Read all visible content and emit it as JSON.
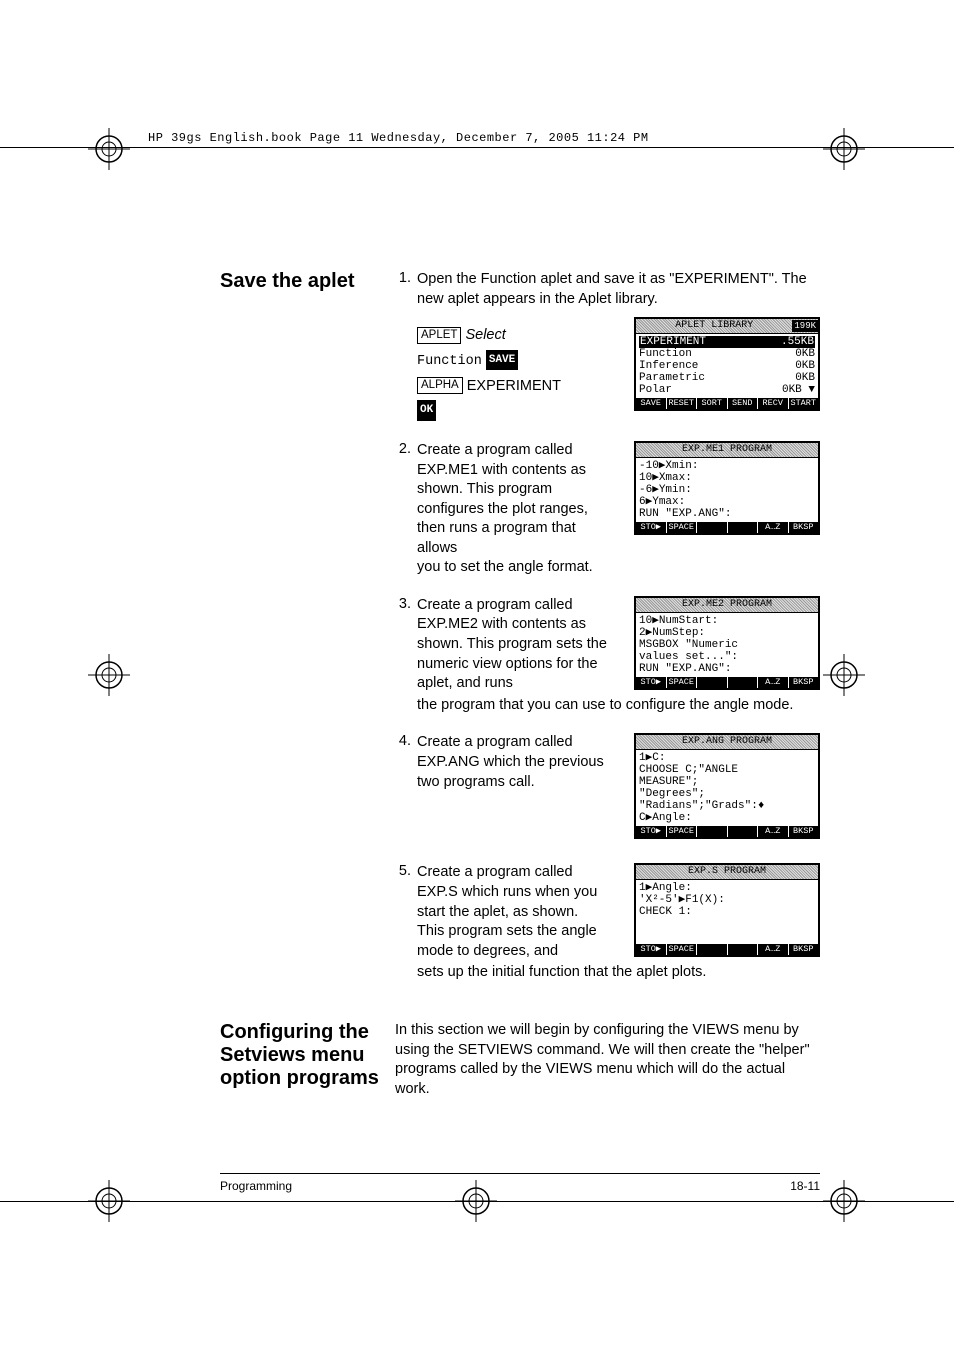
{
  "header": {
    "text": "HP 39gs English.book  Page 11  Wednesday, December 7, 2005  11:24 PM"
  },
  "section1": {
    "heading": "Save the aplet",
    "step1": {
      "text": "Open the Function aplet and save it as \"EXPERIMENT\". The new aplet appears in the Aplet library.",
      "btn_aplet": "APLET",
      "select": "Select",
      "function": "Function",
      "save": "SAVE",
      "btn_alpha": "ALPHA",
      "experiment": "EXPERIMENT",
      "ok": "OK",
      "lcd": {
        "title": "APLET LIBRARY",
        "mem": "199K",
        "rows": [
          {
            "l": "EXPERIMENT",
            "r": ".55KB",
            "hl": true
          },
          {
            "l": "Function",
            "r": "0KB"
          },
          {
            "l": "Inference",
            "r": "0KB"
          },
          {
            "l": "Parametric",
            "r": "0KB"
          },
          {
            "l": "Polar",
            "r": "0KB ▼"
          }
        ],
        "soft": [
          "SAVE",
          "RESET",
          "SORT",
          "SEND",
          "RECV",
          "START"
        ]
      }
    },
    "step2": {
      "text1": "Create a program called EXP.ME1 with contents as shown. This program configures the plot ranges, then runs a program that allows",
      "text2": "you to set the angle format.",
      "lcd": {
        "title": "EXP.ME1 PROGRAM",
        "lines": [
          "-10▶Xmin:",
          "10▶Xmax:",
          "-6▶Ymin:",
          "6▶Ymax:",
          "RUN \"EXP.ANG\":"
        ],
        "soft": [
          "STO▶",
          "SPACE",
          "",
          "",
          "A…Z",
          "BKSP"
        ]
      }
    },
    "step3": {
      "text1": "Create a program called EXP.ME2 with contents as shown. This program sets the numeric view options for the aplet, and runs",
      "text2": "the program that you can use to configure the angle mode.",
      "lcd": {
        "title": "EXP.ME2 PROGRAM",
        "lines": [
          "10▶NumStart:",
          "2▶NumStep:",
          "MSGBOX \"Numeric",
          "values set...\":",
          "RUN \"EXP.ANG\":"
        ],
        "soft": [
          "STO▶",
          "SPACE",
          "",
          "",
          "A…Z",
          "BKSP"
        ]
      }
    },
    "step4": {
      "text": "Create a program called EXP.ANG which the previous two programs call.",
      "lcd": {
        "title": "EXP.ANG PROGRAM",
        "lines": [
          "1▶C:",
          "CHOOSE C;\"ANGLE",
          "MEASURE\";",
          "\"Degrees\";",
          "\"Radians\";\"Grads\":♦",
          "C▶Angle:"
        ],
        "soft": [
          "STO▶",
          "SPACE",
          "",
          "",
          "A…Z",
          "BKSP"
        ]
      }
    },
    "step5": {
      "text1": "Create a program called EXP.S which runs when you start the aplet, as shown. This program sets the angle mode to degrees, and",
      "text2": "sets up the initial function that the aplet plots.",
      "lcd": {
        "title": "EXP.S PROGRAM",
        "lines": [
          "1▶Angle:",
          "'X²-5'▶F1(X):",
          "CHECK 1:",
          "",
          ""
        ],
        "soft": [
          "STO▶",
          "SPACE",
          "",
          "",
          "A…Z",
          "BKSP"
        ]
      }
    }
  },
  "section2": {
    "heading": "Configuring the Setviews menu option programs",
    "text": "In this section we will begin by configuring the VIEWS menu by using the SETVIEWS command. We will then create the \"helper\" programs called by the VIEWS menu which will do the actual work."
  },
  "footer": {
    "left": "Programming",
    "right": "18-11"
  }
}
